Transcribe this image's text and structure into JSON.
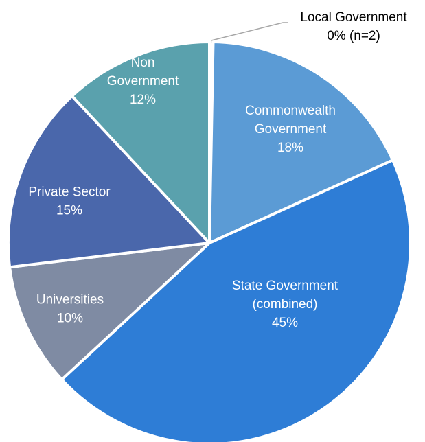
{
  "chart_data": {
    "type": "pie",
    "title": "",
    "legend": "none",
    "slices": [
      {
        "name": "Local Government",
        "label_lines": [
          "Local Government",
          "0% (n=2)"
        ],
        "value": 0.3,
        "color": "#ffffff",
        "label_color": "#000000"
      },
      {
        "name": "Commonwealth Government",
        "label_lines": [
          "Commonwealth",
          "Government",
          "18%"
        ],
        "value": 18,
        "color": "#5b9bd5",
        "label_color": "#ffffff"
      },
      {
        "name": "State Government (combined)",
        "label_lines": [
          "State Government",
          "(combined)",
          "45%"
        ],
        "value": 45,
        "color": "#2e7dd6",
        "label_color": "#ffffff"
      },
      {
        "name": "Universities",
        "label_lines": [
          "Universities",
          "10%"
        ],
        "value": 10,
        "color": "#7f8ba3",
        "label_color": "#ffffff"
      },
      {
        "name": "Private Sector",
        "label_lines": [
          "Private Sector",
          "15%"
        ],
        "value": 15,
        "color": "#4a67ab",
        "label_color": "#ffffff"
      },
      {
        "name": "Non Government",
        "label_lines": [
          "Non",
          "Government",
          "12%"
        ],
        "value": 12,
        "color": "#5aa1ad",
        "label_color": "#ffffff"
      }
    ]
  }
}
